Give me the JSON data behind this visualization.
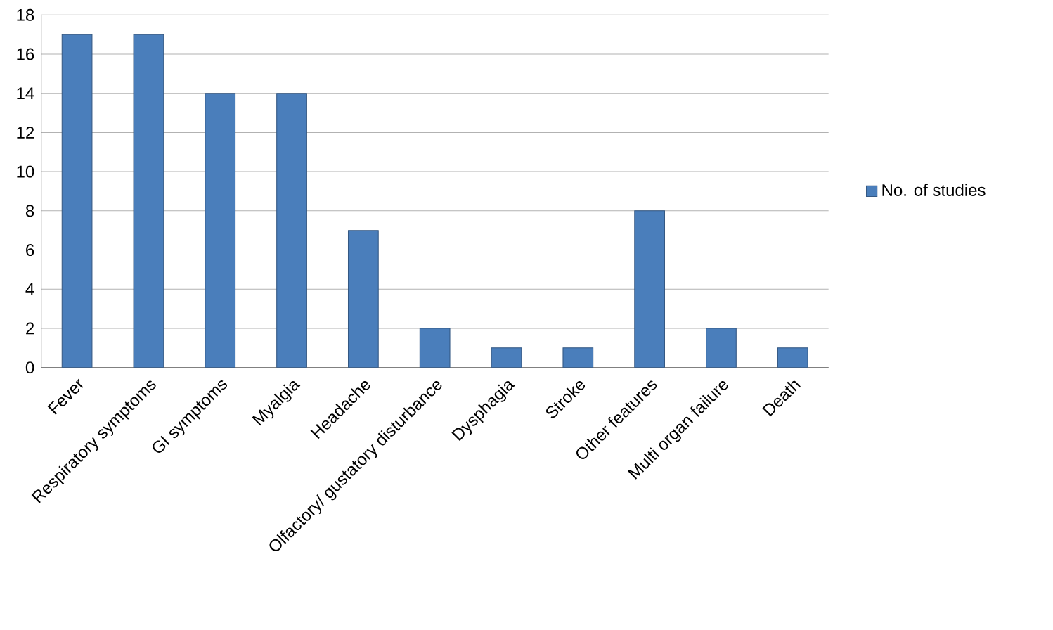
{
  "chart_data": {
    "type": "bar",
    "categories": [
      "Fever",
      "Respiratory symptoms",
      "GI symptoms",
      "Myalgia",
      "Headache",
      "Olfactory/ gustatory disturbance",
      "Dysphagia",
      "Stroke",
      "Other features",
      "Multi organ failure",
      "Death"
    ],
    "series": [
      {
        "name": "No. of studies",
        "color": "#4a7ebb",
        "values": [
          17,
          17,
          14,
          14,
          7,
          2,
          1,
          1,
          8,
          2,
          1
        ]
      }
    ],
    "ylim": [
      0,
      18
    ],
    "yticks": [
      0,
      2,
      4,
      6,
      8,
      10,
      12,
      14,
      16,
      18
    ],
    "grid": "y",
    "legend": "right"
  }
}
